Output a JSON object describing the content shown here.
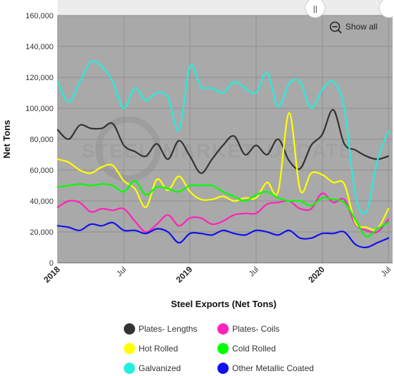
{
  "chart_data": {
    "type": "line",
    "title": "",
    "xlabel": "Steel Exports (Net Tons)",
    "ylabel": "Net Tons",
    "ylim": [
      0,
      160000
    ],
    "yticks": [
      0,
      20000,
      40000,
      60000,
      80000,
      100000,
      120000,
      140000,
      160000
    ],
    "ytick_labels": [
      "0",
      "20,000",
      "40,000",
      "60,000",
      "80,000",
      "100,000",
      "120,000",
      "140,000",
      "160,000"
    ],
    "xlim": [
      "2018-01",
      "2020-07"
    ],
    "xticks": [
      {
        "date": "2018-01",
        "label": "2018",
        "strong": true
      },
      {
        "date": "2018-07",
        "label": "Jul",
        "strong": false
      },
      {
        "date": "2019-01",
        "label": "2019",
        "strong": true
      },
      {
        "date": "2019-07",
        "label": "Jul",
        "strong": false
      },
      {
        "date": "2020-01",
        "label": "2020",
        "strong": true
      },
      {
        "date": "2020-07",
        "label": "Jul",
        "strong": false
      }
    ],
    "grid": true,
    "legend_position": "bottom",
    "x": [
      "2018-01",
      "2018-02",
      "2018-03",
      "2018-04",
      "2018-05",
      "2018-06",
      "2018-07",
      "2018-08",
      "2018-09",
      "2018-10",
      "2018-11",
      "2018-12",
      "2019-01",
      "2019-02",
      "2019-03",
      "2019-04",
      "2019-05",
      "2019-06",
      "2019-07",
      "2019-08",
      "2019-09",
      "2019-10",
      "2019-11",
      "2019-12",
      "2020-01",
      "2020-02",
      "2020-03",
      "2020-04",
      "2020-05",
      "2020-06",
      "2020-07"
    ],
    "series": [
      {
        "name": "Plates- Lengths",
        "color": "#333333",
        "values": [
          86000,
          80000,
          89000,
          87000,
          87000,
          90000,
          76000,
          72000,
          69000,
          77000,
          67000,
          79000,
          69000,
          58000,
          67000,
          76000,
          82000,
          70000,
          76000,
          70000,
          80000,
          66000,
          61000,
          76000,
          83000,
          99000,
          77000,
          73000,
          69000,
          67000,
          69000
        ]
      },
      {
        "name": "Plates- Coils",
        "color": "#ff22bb",
        "values": [
          36000,
          40000,
          39000,
          33000,
          35000,
          34000,
          35000,
          27000,
          20000,
          25000,
          31000,
          24000,
          29000,
          29000,
          25000,
          27000,
          31000,
          32000,
          32000,
          38000,
          39000,
          40000,
          35000,
          35000,
          45000,
          39000,
          41000,
          25000,
          21000,
          20000,
          28000
        ]
      },
      {
        "name": "Hot Rolled",
        "color": "#ffff00",
        "values": [
          67000,
          65000,
          60000,
          58000,
          62000,
          63000,
          53000,
          48000,
          36000,
          54000,
          47000,
          56000,
          46000,
          41000,
          41000,
          43000,
          40000,
          42000,
          42000,
          52000,
          46000,
          97000,
          47000,
          58000,
          57000,
          52000,
          51000,
          26000,
          23000,
          22000,
          35000
        ]
      },
      {
        "name": "Cold Rolled",
        "color": "#00ff00",
        "values": [
          49000,
          50000,
          51000,
          50000,
          51000,
          50000,
          46000,
          53000,
          44000,
          49000,
          48000,
          46000,
          50000,
          50000,
          50000,
          46000,
          43000,
          40000,
          44000,
          46000,
          42000,
          40000,
          40000,
          37000,
          42000,
          41000,
          39000,
          28000,
          17000,
          22000,
          26000
        ]
      },
      {
        "name": "Galvanized",
        "color": "#22eedd",
        "values": [
          117000,
          104000,
          117000,
          130000,
          127000,
          117000,
          100000,
          113000,
          105000,
          110000,
          107000,
          86000,
          127000,
          114000,
          113000,
          110000,
          117000,
          113000,
          110000,
          123000,
          101000,
          116000,
          117000,
          100000,
          112000,
          117000,
          100000,
          44000,
          33000,
          66000,
          85000
        ]
      },
      {
        "name": "Other Metallic Coated",
        "color": "#1111ee",
        "values": [
          24000,
          23000,
          21000,
          25000,
          24000,
          26000,
          21000,
          21000,
          19000,
          22000,
          20000,
          13000,
          19000,
          19000,
          18000,
          21000,
          19000,
          18000,
          21000,
          20000,
          18000,
          21000,
          16000,
          16000,
          19000,
          19000,
          20000,
          12000,
          10000,
          13000,
          16000
        ]
      }
    ]
  },
  "watermark": {
    "part1": "STEEL",
    "part2": "MARKET",
    "part3": "UPDATE"
  },
  "controls": {
    "show_all_label": "Show all",
    "handle_glyph": "||"
  },
  "colors": {
    "plot_bg": "#a9a9a9",
    "grid": "#8e8e8e",
    "navigator": "#ececec"
  }
}
